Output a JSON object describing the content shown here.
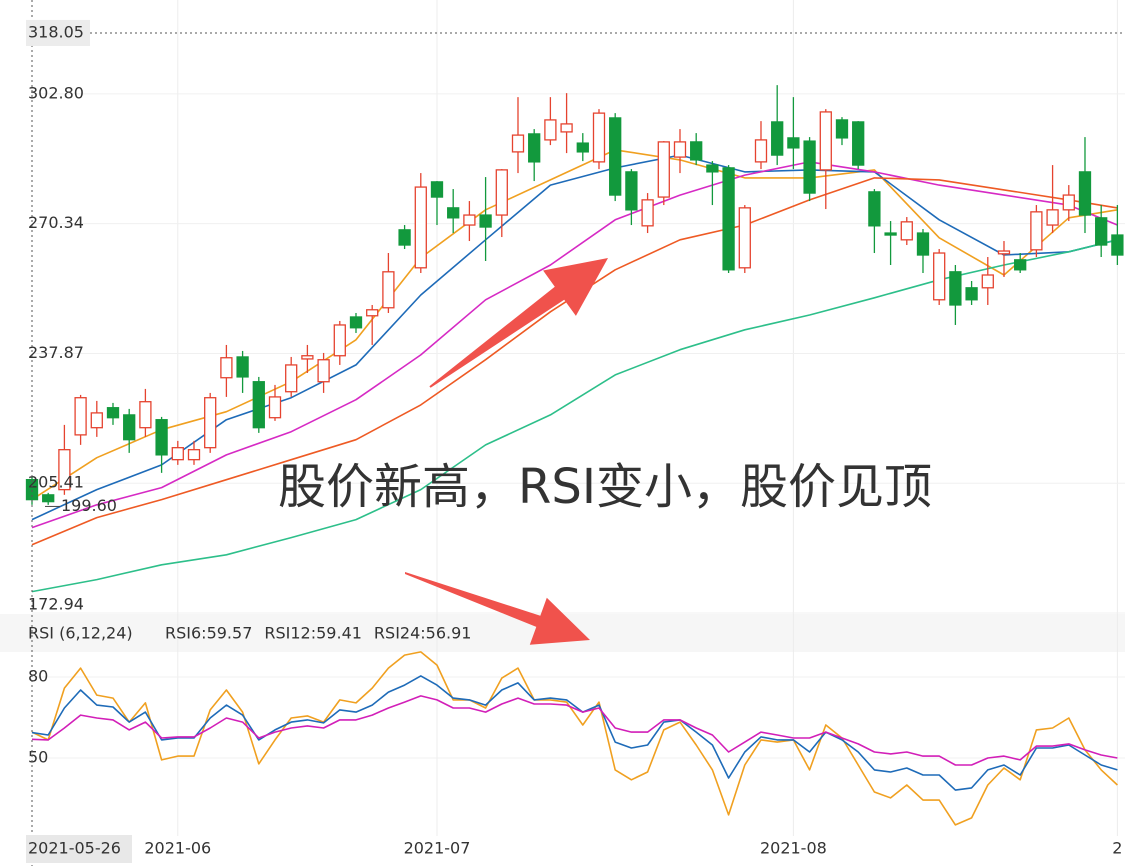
{
  "chart_data": [
    {
      "type": "candlestick",
      "up_color": "#e5432f",
      "down_color": "#12993d",
      "xlim": [
        0,
        67.47
      ],
      "ylim": [
        172.94,
        326.3
      ],
      "yticks": [
        172.94,
        205.41,
        237.87,
        270.34,
        {
          "value": 302.8,
          "label": "302.80"
        }
      ],
      "grid": true,
      "crosshair": {
        "x": 0,
        "y": 318.05,
        "x_label": "2021-05-26"
      },
      "price_marker": {
        "value": 199.6,
        "label": "199.60"
      },
      "annotation": "股价新高，RSI变小，股价见顶",
      "annotation_color": "#f05a50",
      "x": [
        0,
        1,
        2,
        3,
        4,
        5,
        6,
        7,
        8,
        9,
        10,
        11,
        12,
        13,
        14,
        15,
        16,
        17,
        18,
        19,
        20,
        21,
        22,
        23,
        24,
        25,
        26,
        27,
        28,
        29,
        30,
        31,
        32,
        33,
        34,
        35,
        36,
        37,
        38,
        39,
        40,
        41,
        42,
        43,
        44,
        45,
        46,
        47,
        48,
        49,
        50,
        51,
        52,
        53,
        54,
        55,
        56,
        57,
        58,
        59,
        60,
        61,
        62,
        63,
        64,
        65,
        66,
        67
      ],
      "open": [
        206.3,
        202.5,
        203.8,
        217.5,
        219.3,
        224.3,
        222.5,
        219.3,
        221.3,
        211.3,
        211.3,
        214.3,
        231.8,
        237,
        230.8,
        221.8,
        228.3,
        236.5,
        230.8,
        237.3,
        247,
        247.3,
        249.3,
        268.8,
        259.3,
        280.8,
        274.3,
        270,
        272.5,
        272.5,
        288.3,
        292.8,
        291.3,
        293.3,
        290.5,
        285.8,
        296.8,
        283.3,
        269.8,
        277,
        287,
        290.8,
        285,
        284.3,
        259.3,
        285.8,
        295.8,
        291.8,
        291,
        283.8,
        296.3,
        295.8,
        278.3,
        268,
        266.3,
        268,
        251.3,
        258.3,
        254.3,
        254.3,
        262.8,
        261.3,
        263.8,
        270,
        273.8,
        283.3,
        271.8,
        267.5
      ],
      "high": [
        207,
        203,
        220,
        227.5,
        226,
        225.5,
        224,
        229,
        222,
        216,
        216,
        228,
        240,
        238.5,
        232,
        230,
        237,
        240,
        238,
        246,
        248,
        250,
        263,
        270,
        283,
        281,
        279,
        276,
        282,
        284,
        302,
        294,
        302,
        303,
        293,
        299,
        298,
        284,
        278,
        291,
        294,
        293,
        286,
        285,
        275,
        296,
        305,
        302,
        292,
        299,
        297,
        296,
        279,
        271,
        272,
        269,
        264,
        260,
        256,
        262,
        266,
        263,
        275,
        285,
        280,
        292,
        275,
        275
      ],
      "low": [
        200,
        200,
        202.5,
        215,
        217,
        220,
        213,
        217,
        208,
        210,
        210,
        213,
        227,
        228,
        218,
        221,
        227,
        233,
        228,
        235,
        243,
        240,
        248,
        264,
        258,
        270,
        268,
        266,
        261,
        267,
        283,
        281,
        290,
        288,
        286,
        284,
        276,
        270,
        268,
        275,
        283,
        285,
        275,
        258,
        258,
        284,
        285,
        284,
        276,
        274,
        290,
        284,
        263,
        260,
        265,
        258,
        250,
        245,
        250,
        250,
        257,
        258,
        262,
        268,
        271,
        268,
        262,
        260
      ],
      "close": [
        201.3,
        200.8,
        213.8,
        226.8,
        223,
        221.8,
        216.3,
        225.8,
        212.5,
        214.3,
        213.8,
        226.8,
        236.8,
        232,
        219.3,
        227,
        235,
        237.3,
        236.3,
        245,
        244.3,
        248.8,
        258.3,
        265,
        279.5,
        277,
        271.8,
        272.5,
        269.5,
        283.8,
        292.5,
        285.8,
        296.3,
        295.3,
        288.3,
        298,
        277.5,
        273.8,
        276.3,
        290.8,
        290.8,
        286.3,
        283.3,
        258.8,
        274.3,
        291.3,
        287.5,
        289.3,
        278,
        298.3,
        291.8,
        285,
        269.8,
        267.5,
        270.8,
        262.5,
        263,
        250,
        251.3,
        257.5,
        263.5,
        258.8,
        273.3,
        273.8,
        277.5,
        272.5,
        265,
        262.5
      ],
      "series": [
        {
          "color": "#f0a020",
          "x": [
            0,
            4,
            8,
            12,
            16,
            20,
            24,
            28,
            32,
            36,
            40,
            44,
            48,
            52,
            56,
            60,
            64,
            67
          ],
          "values": [
            201.3,
            211.8,
            218.8,
            223.3,
            230.8,
            241.3,
            261.8,
            273.8,
            281.3,
            288.8,
            286.3,
            281.8,
            281.8,
            283.8,
            266.8,
            257.5,
            271.8,
            273.8
          ]
        },
        {
          "color": "#1e6bb8",
          "x": [
            0,
            4,
            8,
            12,
            16,
            20,
            24,
            28,
            32,
            36,
            40,
            44,
            48,
            52,
            56,
            60,
            64,
            67
          ],
          "values": [
            196.3,
            203.8,
            210,
            221.3,
            226.8,
            235,
            252.5,
            266.3,
            280,
            284.3,
            287.5,
            283.3,
            283.8,
            283.3,
            271.3,
            262.5,
            263.3,
            266.3
          ]
        },
        {
          "color": "#d62ac4",
          "x": [
            0,
            4,
            8,
            12,
            16,
            20,
            24,
            28,
            32,
            36,
            40,
            44,
            48,
            52,
            56,
            60,
            64,
            67
          ],
          "values": [
            194.3,
            200,
            204.3,
            212.5,
            218.3,
            226.3,
            237.5,
            251.3,
            260,
            271.3,
            277.5,
            282.5,
            285.8,
            283.3,
            280,
            277.5,
            275,
            270
          ]
        },
        {
          "color": "#ee5a24",
          "x": [
            0,
            4,
            8,
            12,
            16,
            20,
            24,
            28,
            32,
            36,
            40,
            44,
            48,
            52,
            56,
            60,
            64,
            67
          ],
          "values": [
            190,
            196.8,
            201.3,
            206.3,
            211.3,
            216.3,
            225,
            236.3,
            248.3,
            258.8,
            266.3,
            270,
            276.3,
            281.8,
            281.3,
            278.8,
            276.3,
            274.3
          ]
        },
        {
          "color": "#2dbf8a",
          "x": [
            0,
            4,
            8,
            12,
            16,
            20,
            24,
            28,
            32,
            36,
            40,
            44,
            48,
            52,
            56,
            60,
            64,
            67
          ],
          "values": [
            178.3,
            181.3,
            185,
            187.5,
            191.8,
            196.3,
            203.8,
            215,
            222.5,
            232.5,
            238.8,
            243.8,
            247.5,
            251.8,
            256.3,
            260,
            263.3,
            266.3
          ]
        }
      ]
    },
    {
      "type": "line",
      "title": "RSI (6,12,24)",
      "xlim": [
        0,
        67.47
      ],
      "ylim": [
        21.1,
        90
      ],
      "yticks": [
        50,
        80
      ],
      "grid": true,
      "xticks": [
        {
          "value": 9,
          "label": "2021-06"
        },
        {
          "value": 25,
          "label": "2021-07"
        },
        {
          "value": 47,
          "label": "2021-08"
        },
        {
          "value": 67,
          "label": "2"
        }
      ],
      "series": [
        {
          "legend": "RSI6:59.57",
          "color": "#f0a020",
          "values": [
            59.57,
            56.7,
            75.9,
            83.3,
            73.3,
            72.2,
            63.3,
            70.4,
            49.3,
            50.7,
            50.7,
            67.8,
            75.2,
            67,
            47.8,
            56.7,
            64.8,
            65.6,
            63.3,
            71.5,
            70.4,
            75.9,
            83.3,
            88.1,
            89.3,
            84.4,
            71.5,
            71.5,
            68.5,
            79.6,
            83.3,
            71.5,
            71.5,
            70.7,
            62.2,
            70.7,
            45.6,
            41.9,
            44.8,
            60.4,
            63.3,
            54.8,
            45.6,
            28.9,
            47.4,
            56.7,
            55.9,
            56.7,
            45.6,
            62.2,
            57.4,
            47.4,
            37.4,
            35.2,
            40,
            34.4,
            34.4,
            25.2,
            27.8,
            40,
            46.3,
            41.9,
            60.4,
            61.1,
            64.8,
            53,
            45.6,
            40
          ]
        },
        {
          "legend": "RSI12:59.41",
          "color": "#1e6bb8",
          "values": [
            59.41,
            58.5,
            68.5,
            75.2,
            69.6,
            68.9,
            63.3,
            67,
            56.7,
            57.4,
            57.4,
            64.8,
            69.6,
            65.9,
            56.7,
            60.4,
            63.3,
            64.1,
            63,
            67.8,
            67,
            69.6,
            74.4,
            77,
            80.4,
            77,
            72.2,
            71.5,
            69.6,
            75.2,
            77.8,
            71.5,
            72.2,
            71.5,
            67,
            69.6,
            55.9,
            53.7,
            54.8,
            63.3,
            64.1,
            59.6,
            54.8,
            42.6,
            52.2,
            57.8,
            56.7,
            56.7,
            52.2,
            59.6,
            56.7,
            52.2,
            45.6,
            44.8,
            46.3,
            43.7,
            43.7,
            38.1,
            38.9,
            45.6,
            47.4,
            43.7,
            53.7,
            53.7,
            54.8,
            51.1,
            47.4,
            45.6
          ]
        },
        {
          "legend": "RSI24:56.91",
          "color": "#d21fb8",
          "values": [
            56.91,
            56.7,
            61.1,
            65.9,
            64.8,
            64.1,
            60.4,
            63.3,
            57.4,
            57.8,
            57.8,
            61.1,
            64.8,
            63.3,
            57.4,
            59.6,
            61.1,
            61.9,
            61.1,
            64.1,
            64.1,
            65.9,
            68.5,
            70.7,
            73,
            71.5,
            68.5,
            68.5,
            67,
            70,
            72.2,
            70,
            70,
            69.6,
            67,
            68.5,
            61.1,
            59.6,
            59.6,
            64.1,
            64.1,
            61.1,
            58.5,
            52.2,
            55.9,
            59.6,
            58.5,
            57.4,
            57.4,
            59.6,
            57.4,
            55.2,
            52.2,
            51.5,
            52.2,
            50.7,
            50.7,
            47.4,
            47.4,
            50,
            50.7,
            49.3,
            54.4,
            54.4,
            55.2,
            53,
            51.1,
            50
          ]
        }
      ]
    }
  ]
}
